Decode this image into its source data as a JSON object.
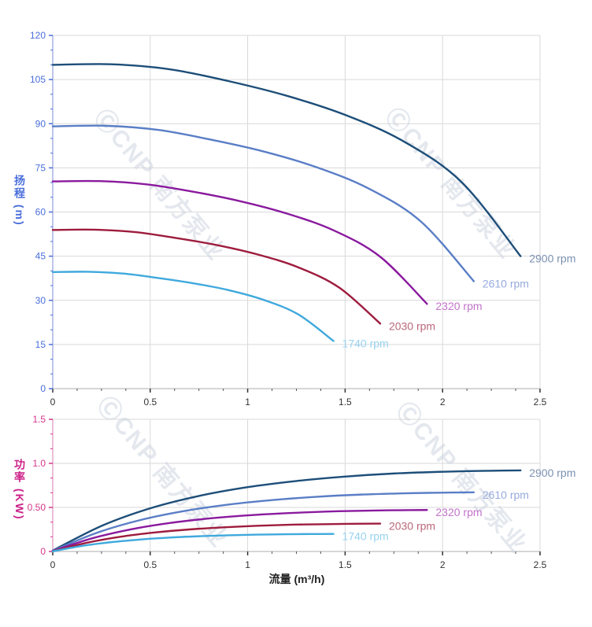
{
  "watermark": {
    "text": "ⒸCNP 南方泵业",
    "color": "#c9d1de"
  },
  "colors": {
    "head_axis": "#4a6edb",
    "power_axis": "#cc2288",
    "x_axis_text": "#333333",
    "grid": "#d9d9d9"
  },
  "chart_data": [
    {
      "type": "line",
      "id": "head",
      "ylabel": "扬程 (m)",
      "xlabel": "",
      "xlim": [
        0,
        2.5
      ],
      "ylim": [
        0,
        120
      ],
      "xtick_major": 0.5,
      "xtick_minor": 0.125,
      "ytick_major": 15,
      "ytick_minor": 5,
      "xtick_labels": [
        "0",
        "0.5",
        "1",
        "1.5",
        "2",
        "2.5"
      ],
      "ytick_labels": [
        "0",
        "15",
        "30",
        "45",
        "60",
        "75",
        "90",
        "105",
        "120"
      ],
      "axis_color": "#4a6edb",
      "axis_line_color": "#a9b4e6",
      "grid": true,
      "legend_position": "curve-end-labels",
      "series": [
        {
          "name": "2900 rpm",
          "color": "#1d4e79",
          "label_color": "#7a90b0",
          "points": [
            [
              0,
              110
            ],
            [
              0.3,
              110.2
            ],
            [
              0.6,
              108.5
            ],
            [
              0.9,
              104.5
            ],
            [
              1.2,
              99.5
            ],
            [
              1.5,
              93
            ],
            [
              1.8,
              84
            ],
            [
              2.1,
              70
            ],
            [
              2.4,
              45
            ]
          ]
        },
        {
          "name": "2610 rpm",
          "color": "#5a7ec6",
          "label_color": "#96aadd",
          "points": [
            [
              0,
              89.1
            ],
            [
              0.27,
              89.3
            ],
            [
              0.54,
              87.9
            ],
            [
              0.81,
              84.6
            ],
            [
              1.08,
              80.6
            ],
            [
              1.35,
              75.3
            ],
            [
              1.62,
              68
            ],
            [
              1.89,
              56.7
            ],
            [
              2.16,
              36.5
            ]
          ]
        },
        {
          "name": "2320 rpm",
          "color": "#8a1a9e",
          "label_color": "#c273c9",
          "points": [
            [
              0,
              70.4
            ],
            [
              0.24,
              70.5
            ],
            [
              0.48,
              69.4
            ],
            [
              0.72,
              66.9
            ],
            [
              0.96,
              63.7
            ],
            [
              1.2,
              59.5
            ],
            [
              1.44,
              53.8
            ],
            [
              1.68,
              44.8
            ],
            [
              1.92,
              28.8
            ]
          ]
        },
        {
          "name": "2030 rpm",
          "color": "#9e1c3e",
          "label_color": "#b8687a",
          "points": [
            [
              0,
              53.9
            ],
            [
              0.21,
              54
            ],
            [
              0.42,
              53.2
            ],
            [
              0.63,
              51.2
            ],
            [
              0.84,
              48.8
            ],
            [
              1.05,
              45.6
            ],
            [
              1.26,
              41.2
            ],
            [
              1.47,
              34.3
            ],
            [
              1.68,
              22.1
            ]
          ]
        },
        {
          "name": "1740 rpm",
          "color": "#3fa9dd",
          "label_color": "#97d2f0",
          "points": [
            [
              0,
              39.6
            ],
            [
              0.18,
              39.7
            ],
            [
              0.36,
              39.1
            ],
            [
              0.54,
              37.6
            ],
            [
              0.72,
              35.8
            ],
            [
              0.9,
              33.5
            ],
            [
              1.08,
              30.2
            ],
            [
              1.26,
              25.2
            ],
            [
              1.44,
              16.2
            ]
          ]
        }
      ]
    },
    {
      "type": "line",
      "id": "power",
      "ylabel": "功率 (KW)",
      "xlabel": "流量 (m³/h)",
      "xlim": [
        0,
        2.5
      ],
      "ylim": [
        0,
        1.5
      ],
      "xtick_major": 0.5,
      "xtick_minor": 0.125,
      "ytick_major": 0.5,
      "ytick_minor": 0.1666667,
      "xtick_labels": [
        "0",
        "0.5",
        "1",
        "1.5",
        "2",
        "2.5"
      ],
      "ytick_labels": [
        "0",
        "0.50",
        "1.0",
        "1.5"
      ],
      "axis_color": "#d6358a",
      "axis_line_color": "#e6a8cc",
      "grid": true,
      "legend_position": "curve-end-labels",
      "series": [
        {
          "name": "2900 rpm",
          "color": "#1d4e79",
          "label_color": "#7a90b0",
          "points": [
            [
              0,
              0.01
            ],
            [
              0.25,
              0.29
            ],
            [
              0.5,
              0.49
            ],
            [
              0.75,
              0.63
            ],
            [
              1,
              0.73
            ],
            [
              1.25,
              0.8
            ],
            [
              1.5,
              0.85
            ],
            [
              1.75,
              0.885
            ],
            [
              2,
              0.905
            ],
            [
              2.2,
              0.915
            ],
            [
              2.4,
              0.92
            ]
          ]
        },
        {
          "name": "2610 rpm",
          "color": "#5a7ec6",
          "label_color": "#96aadd",
          "points": [
            [
              0,
              0.007
            ],
            [
              0.225,
              0.211
            ],
            [
              0.45,
              0.357
            ],
            [
              0.675,
              0.459
            ],
            [
              0.9,
              0.532
            ],
            [
              1.125,
              0.583
            ],
            [
              1.35,
              0.62
            ],
            [
              1.575,
              0.645
            ],
            [
              1.8,
              0.66
            ],
            [
              1.98,
              0.667
            ],
            [
              2.16,
              0.671
            ]
          ]
        },
        {
          "name": "2320 rpm",
          "color": "#8a1a9e",
          "label_color": "#c273c9",
          "points": [
            [
              0,
              0.005
            ],
            [
              0.2,
              0.148
            ],
            [
              0.4,
              0.251
            ],
            [
              0.6,
              0.323
            ],
            [
              0.8,
              0.374
            ],
            [
              1,
              0.41
            ],
            [
              1.2,
              0.435
            ],
            [
              1.4,
              0.453
            ],
            [
              1.6,
              0.463
            ],
            [
              1.76,
              0.468
            ],
            [
              1.92,
              0.471
            ]
          ]
        },
        {
          "name": "2030 rpm",
          "color": "#9e1c3e",
          "label_color": "#b8687a",
          "points": [
            [
              0,
              0.003
            ],
            [
              0.175,
              0.099
            ],
            [
              0.35,
              0.168
            ],
            [
              0.525,
              0.216
            ],
            [
              0.7,
              0.25
            ],
            [
              0.875,
              0.274
            ],
            [
              1.05,
              0.292
            ],
            [
              1.225,
              0.304
            ],
            [
              1.4,
              0.31
            ],
            [
              1.54,
              0.314
            ],
            [
              1.68,
              0.316
            ]
          ]
        },
        {
          "name": "1740 rpm",
          "color": "#3fa9dd",
          "label_color": "#97d2f0",
          "points": [
            [
              0,
              0.002
            ],
            [
              0.15,
              0.063
            ],
            [
              0.3,
              0.106
            ],
            [
              0.45,
              0.136
            ],
            [
              0.6,
              0.158
            ],
            [
              0.75,
              0.173
            ],
            [
              0.9,
              0.184
            ],
            [
              1.05,
              0.191
            ],
            [
              1.2,
              0.196
            ],
            [
              1.32,
              0.198
            ],
            [
              1.44,
              0.199
            ]
          ]
        }
      ]
    }
  ]
}
